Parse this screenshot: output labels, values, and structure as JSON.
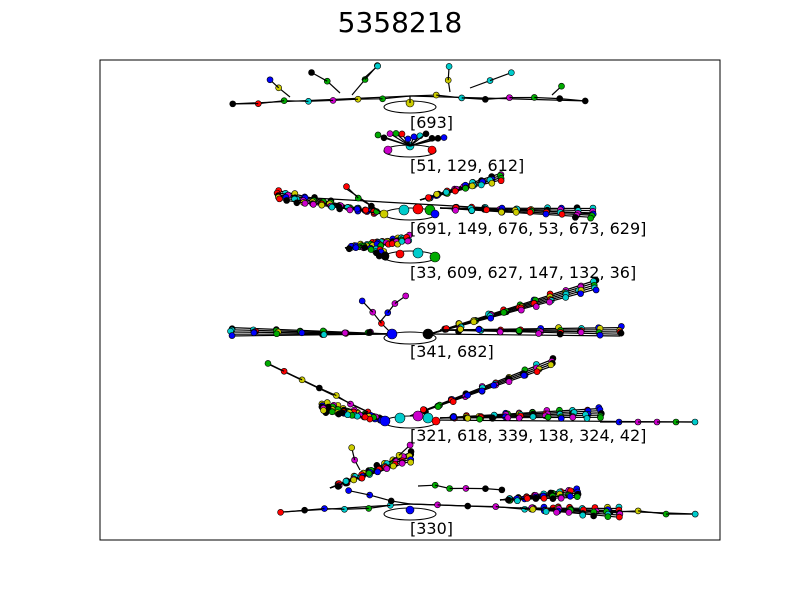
{
  "title": "5358218",
  "colors": {
    "palette": [
      "#ff0000",
      "#0000ff",
      "#00aa00",
      "#cccc00",
      "#00cccc",
      "#cc00cc",
      "#000000"
    ]
  },
  "graphs": [
    {
      "label": "[693]"
    },
    {
      "label": "[51, 129, 612]"
    },
    {
      "label": "[691, 149, 676, 53, 673, 629]"
    },
    {
      "label": "[33, 609, 627, 147, 132, 36]"
    },
    {
      "label": "[341, 682]"
    },
    {
      "label": "[321, 618, 339, 138, 324, 42]"
    },
    {
      "label": "[330]"
    }
  ]
}
